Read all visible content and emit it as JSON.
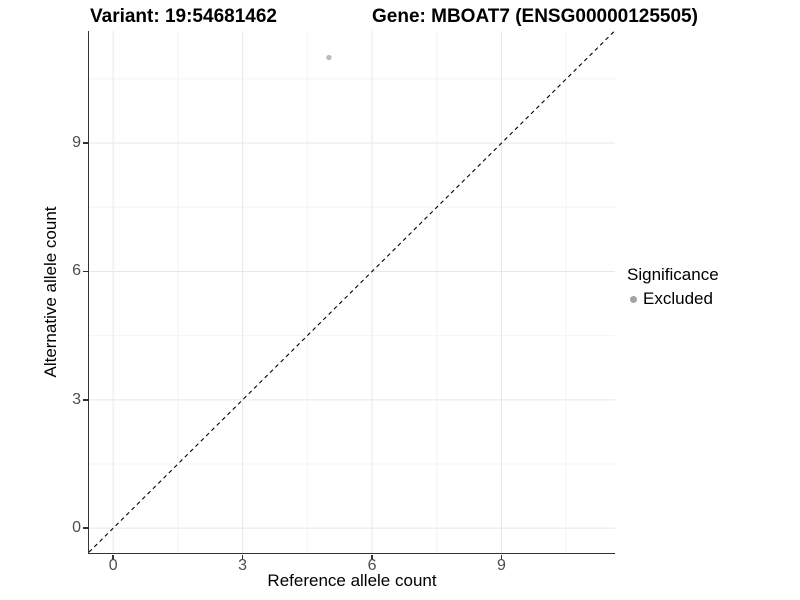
{
  "header": {
    "variant_title": "Variant: 19:54681462",
    "gene_title": "Gene: MBOAT7 (ENSG00000125505)"
  },
  "axes": {
    "x_label": "Reference allele count",
    "y_label": "Alternative allele count",
    "x_tick_labels": [
      "0",
      "3",
      "6",
      "9"
    ],
    "y_tick_labels": [
      "0",
      "3",
      "6",
      "9"
    ]
  },
  "legend": {
    "title": "Significance",
    "items": [
      {
        "label": "Excluded",
        "color": "#a3a3a3"
      }
    ]
  },
  "colors": {
    "background": "#ffffff",
    "axis_line": "#333333",
    "tick_label": "#4d4d4d",
    "grid_major": "#e8e8e8",
    "grid_minor": "#f4f4f4",
    "diagonal_line": "#000000",
    "point": "#bdbdbd",
    "legend_point": "#a3a3a3",
    "title_text": "#000000"
  },
  "chart_data": {
    "type": "scatter",
    "title_left": "Variant: 19:54681462",
    "title_right": "Gene: MBOAT7 (ENSG00000125505)",
    "xlabel": "Reference allele count",
    "ylabel": "Alternative allele count",
    "xlim": [
      -0.56,
      11.63
    ],
    "ylim": [
      -0.58,
      11.62
    ],
    "x_ticks": [
      0,
      3,
      6,
      9
    ],
    "y_ticks": [
      0,
      3,
      6,
      9
    ],
    "x_minor_gridlines": [
      1.5,
      4.5,
      7.5,
      10.5
    ],
    "y_minor_gridlines": [
      1.5,
      4.5,
      7.5,
      10.5
    ],
    "grid": "major+minor",
    "legend_position": "right",
    "series": [
      {
        "name": "Excluded",
        "color": "#bdbdbd",
        "points": [
          [
            5,
            11
          ]
        ]
      }
    ],
    "reference_line": {
      "equation": "y = x",
      "style": "dashed",
      "from": [
        -0.56,
        -0.56
      ],
      "to": [
        11.62,
        11.62
      ]
    }
  }
}
